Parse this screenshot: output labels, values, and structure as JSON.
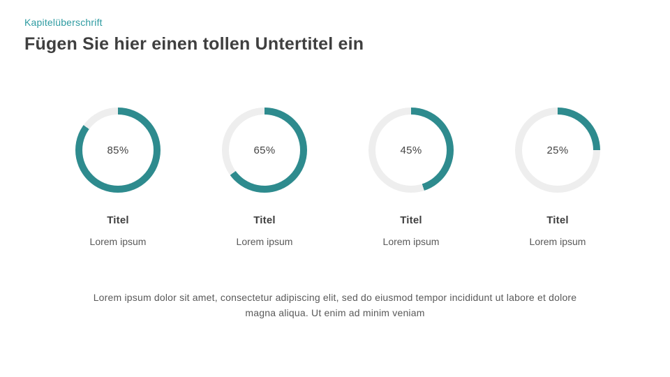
{
  "theme": {
    "accent_teal": "#2E8B8E",
    "heading_teal": "#2E9BA1",
    "ring_track": "#EEEEEE",
    "title_color": "#3F3F3F",
    "body_color": "#595959"
  },
  "header": {
    "eyebrow": "Kapitelüberschrift",
    "title": "Fügen Sie hier einen tollen Untertitel ein"
  },
  "stats": {
    "items": [
      {
        "percent": 85,
        "percent_label": "85%",
        "title": "Titel",
        "caption": "Lorem ipsum"
      },
      {
        "percent": 65,
        "percent_label": "65%",
        "title": "Titel",
        "caption": "Lorem ipsum"
      },
      {
        "percent": 45,
        "percent_label": "45%",
        "title": "Titel",
        "caption": "Lorem ipsum"
      },
      {
        "percent": 25,
        "percent_label": "25%",
        "title": "Titel",
        "caption": "Lorem ipsum"
      }
    ]
  },
  "footer": {
    "paragraph": "Lorem ipsum dolor sit amet, consectetur adipiscing elit, sed do eiusmod tempor incididunt ut labore et dolore magna aliqua. Ut enim ad minim veniam"
  },
  "chart_data": [
    {
      "type": "pie",
      "subtype": "donut-progress",
      "title": "Titel",
      "caption": "Lorem ipsum",
      "center_label": "85%",
      "labels": [
        "progress",
        "remainder"
      ],
      "values": [
        85,
        15
      ],
      "colors": [
        "#2E8B8E",
        "#EEEEEE"
      ],
      "start_angle_deg": 0,
      "direction": "clockwise",
      "legend": "off"
    },
    {
      "type": "pie",
      "subtype": "donut-progress",
      "title": "Titel",
      "caption": "Lorem ipsum",
      "center_label": "65%",
      "labels": [
        "progress",
        "remainder"
      ],
      "values": [
        65,
        35
      ],
      "colors": [
        "#2E8B8E",
        "#EEEEEE"
      ],
      "start_angle_deg": 0,
      "direction": "clockwise",
      "legend": "off"
    },
    {
      "type": "pie",
      "subtype": "donut-progress",
      "title": "Titel",
      "caption": "Lorem ipsum",
      "center_label": "45%",
      "labels": [
        "progress",
        "remainder"
      ],
      "values": [
        45,
        55
      ],
      "colors": [
        "#2E8B8E",
        "#EEEEEE"
      ],
      "start_angle_deg": 0,
      "direction": "clockwise",
      "legend": "off"
    },
    {
      "type": "pie",
      "subtype": "donut-progress",
      "title": "Titel",
      "caption": "Lorem ipsum",
      "center_label": "25%",
      "labels": [
        "progress",
        "remainder"
      ],
      "values": [
        25,
        75
      ],
      "colors": [
        "#2E8B8E",
        "#EEEEEE"
      ],
      "start_angle_deg": 0,
      "direction": "clockwise",
      "legend": "off"
    }
  ]
}
